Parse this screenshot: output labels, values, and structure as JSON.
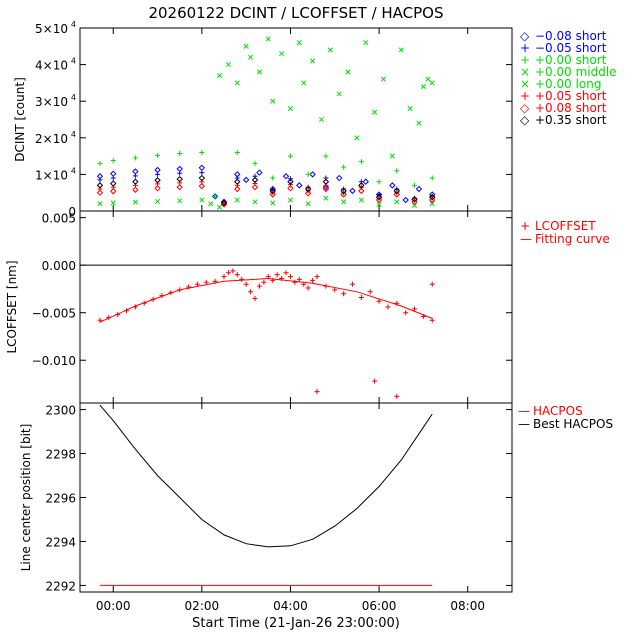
{
  "title": "20260122 DCINT / LCOFFSET / HACPOS",
  "x_axis": {
    "label": "Start Time (21-Jan-26 23:00:00)",
    "ticks": [
      "00:00",
      "02:00",
      "04:00",
      "06:00",
      "08:00"
    ],
    "tick_hours": [
      1,
      3,
      5,
      7,
      9
    ],
    "range_hours": [
      0.25,
      10.0
    ]
  },
  "colors": {
    "blue": "#0000ff",
    "green": "#00e000",
    "red": "#ff0000",
    "black": "#000000"
  },
  "chart_data": [
    {
      "type": "scatter",
      "name": "DCINT",
      "ylabel": "DCINT [count]",
      "ylim": [
        0,
        50000
      ],
      "yticks": [
        {
          "value": 0,
          "base": "0",
          "exp": ""
        },
        {
          "value": 10000,
          "base": "1×10",
          "exp": "4"
        },
        {
          "value": 20000,
          "base": "2×10",
          "exp": "4"
        },
        {
          "value": 30000,
          "base": "3×10",
          "exp": "4"
        },
        {
          "value": 40000,
          "base": "4×10",
          "exp": "4"
        },
        {
          "value": 50000,
          "base": "5×10",
          "exp": "4"
        }
      ],
      "legend": [
        {
          "symbol": "◇",
          "label": "−0.08 short",
          "color": "#0000ff"
        },
        {
          "symbol": "+",
          "label": "−0.05 short",
          "color": "#0000ff"
        },
        {
          "symbol": "+",
          "label": "+0.00 short",
          "color": "#00e000"
        },
        {
          "symbol": "×",
          "label": "+0.00 middle",
          "color": "#00e000"
        },
        {
          "symbol": "×",
          "label": "+0.00 long",
          "color": "#00e000"
        },
        {
          "symbol": "+",
          "label": "+0.05 short",
          "color": "#ff0000"
        },
        {
          "symbol": "◇",
          "label": "+0.08 short",
          "color": "#ff0000"
        },
        {
          "symbol": "◇",
          "label": "+0.35 short",
          "color": "#000000"
        }
      ],
      "series": [
        {
          "name": "-0.08 short",
          "marker": "diamond",
          "color": "#0000ff",
          "x": [
            0.7,
            1.0,
            1.5,
            2.0,
            2.5,
            3.0,
            3.3,
            3.5,
            3.8,
            4.0,
            4.3,
            4.6,
            4.9,
            5.2,
            5.5,
            5.8,
            6.1,
            6.4,
            6.7,
            7.0,
            7.3,
            7.6,
            7.9,
            8.2
          ],
          "y": [
            9500,
            10200,
            10800,
            11200,
            11500,
            11800,
            4000,
            2500,
            10000,
            8500,
            10500,
            6000,
            9500,
            7000,
            10000,
            6500,
            9000,
            5500,
            8000,
            4500,
            7000,
            3000,
            6000,
            4500
          ]
        },
        {
          "name": "-0.05 short",
          "marker": "plus",
          "color": "#0000ff",
          "x": [
            0.7,
            1.0,
            1.5,
            2.0,
            2.5,
            3.0,
            3.5,
            3.8,
            4.2,
            4.6,
            5.0,
            5.4,
            5.8,
            6.2,
            6.6,
            7.0,
            7.4,
            7.8,
            8.2
          ],
          "y": [
            8500,
            9000,
            9600,
            10000,
            10300,
            10500,
            2500,
            9000,
            9500,
            5800,
            8800,
            6500,
            9000,
            6000,
            8000,
            4500,
            6000,
            3500,
            4000
          ]
        },
        {
          "name": "+0.00 short",
          "marker": "plus",
          "color": "#00e000",
          "x": [
            0.7,
            1.0,
            1.5,
            2.0,
            2.5,
            3.0,
            3.3,
            3.5,
            3.8,
            4.2,
            4.6,
            5.0,
            5.4,
            5.8,
            6.2,
            6.6,
            7.0,
            7.4,
            7.8,
            8.2
          ],
          "y": [
            13000,
            13800,
            14500,
            15200,
            15700,
            16000,
            4000,
            2000,
            16000,
            13000,
            9000,
            15000,
            10000,
            15000,
            12000,
            13500,
            8000,
            11000,
            7000,
            9000
          ]
        },
        {
          "name": "+0.00 middle",
          "marker": "cross",
          "color": "#00e000",
          "x": [
            3.4,
            3.6,
            3.8,
            4.0,
            4.1,
            4.3,
            4.5,
            4.6,
            4.8,
            5.0,
            5.2,
            5.3,
            5.5,
            5.7,
            5.9,
            6.1,
            6.3,
            6.5,
            6.7,
            6.9,
            7.1,
            7.3,
            7.5,
            7.7,
            7.9,
            8.0,
            8.1,
            8.2
          ],
          "y": [
            37000,
            40000,
            35000,
            45000,
            42000,
            38000,
            47000,
            30000,
            43000,
            28000,
            46000,
            35000,
            41000,
            25000,
            44000,
            32000,
            38000,
            20000,
            46000,
            27000,
            36000,
            15000,
            44000,
            28000,
            24000,
            34000,
            36000,
            35000
          ]
        },
        {
          "name": "+0.00 long",
          "marker": "cross",
          "color": "#00e000",
          "x": [
            0.7,
            1.0,
            1.5,
            2.0,
            2.5,
            3.0,
            3.2,
            3.4,
            3.8,
            4.2,
            4.6,
            5.0,
            5.4,
            5.8,
            6.2,
            6.6,
            7.0,
            7.4,
            7.8,
            8.2
          ],
          "y": [
            2000,
            2200,
            2400,
            2600,
            2800,
            3000,
            2000,
            1000,
            3000,
            2500,
            2200,
            3000,
            2000,
            3500,
            2500,
            3000,
            1800,
            2500,
            1500,
            2000
          ]
        },
        {
          "name": "+0.05 short",
          "marker": "plus",
          "color": "#ff0000",
          "x": [
            0.7,
            1.0,
            1.5,
            2.0,
            2.5,
            3.0,
            3.5,
            3.8,
            4.2,
            4.6,
            5.0,
            5.4,
            5.8,
            6.2,
            6.6,
            7.0,
            7.4,
            7.8,
            8.2
          ],
          "y": [
            6000,
            6500,
            7000,
            7400,
            7700,
            8000,
            2000,
            7000,
            7500,
            5000,
            7200,
            5500,
            7000,
            5000,
            6500,
            3500,
            5000,
            3000,
            3500
          ]
        },
        {
          "name": "+0.08 short",
          "marker": "diamond",
          "color": "#ff0000",
          "x": [
            0.7,
            1.0,
            1.5,
            2.0,
            2.5,
            3.0,
            3.5,
            3.8,
            4.2,
            4.6,
            5.0,
            5.4,
            5.8,
            6.2,
            6.6,
            7.0,
            7.4,
            7.8,
            8.2
          ],
          "y": [
            5000,
            5400,
            5800,
            6200,
            6500,
            6800,
            1800,
            6000,
            6500,
            4500,
            6200,
            4800,
            6000,
            4500,
            5500,
            3000,
            4500,
            2500,
            3000
          ]
        },
        {
          "name": "+0.35 short",
          "marker": "diamond",
          "color": "#000000",
          "x": [
            0.7,
            1.0,
            1.5,
            2.0,
            2.5,
            3.0,
            3.5,
            3.8,
            4.2,
            4.6,
            5.0,
            5.4,
            5.8,
            6.2,
            6.6,
            7.0,
            7.4,
            7.8,
            8.2
          ],
          "y": [
            7000,
            7500,
            8000,
            8400,
            8700,
            9000,
            2200,
            8000,
            8500,
            5500,
            8000,
            6000,
            8000,
            5500,
            7000,
            3800,
            5500,
            3200,
            3800
          ]
        }
      ]
    },
    {
      "type": "scatter",
      "name": "LCOFFSET",
      "ylabel": "LCOFFSET [nm]",
      "ylim": [
        -0.0145,
        0.0057
      ],
      "yticks": [
        {
          "value": 0.005,
          "label": "0.005"
        },
        {
          "value": 0.0,
          "label": "0.000"
        },
        {
          "value": -0.005,
          "label": "−0.005"
        },
        {
          "value": -0.01,
          "label": "−0.010"
        }
      ],
      "zero_line": 0.0,
      "legend": [
        {
          "symbol": "+",
          "label": "LCOFFSET",
          "color": "#ff0000"
        },
        {
          "symbol": "—",
          "label": "Fitting curve",
          "color": "#ff0000"
        }
      ],
      "series": [
        {
          "name": "LCOFFSET",
          "marker": "plus",
          "color": "#ff0000",
          "x": [
            0.7,
            0.9,
            1.1,
            1.3,
            1.5,
            1.7,
            1.9,
            2.1,
            2.3,
            2.5,
            2.7,
            2.9,
            3.1,
            3.3,
            3.5,
            3.6,
            3.7,
            3.8,
            3.9,
            4.0,
            4.1,
            4.2,
            4.3,
            4.4,
            4.5,
            4.6,
            4.7,
            4.8,
            4.9,
            5.0,
            5.1,
            5.2,
            5.3,
            5.4,
            5.5,
            5.6,
            5.8,
            6.0,
            6.2,
            6.4,
            6.6,
            6.8,
            7.0,
            7.2,
            7.4,
            7.6,
            7.8,
            8.0,
            8.2,
            5.6,
            6.9,
            7.4,
            8.2
          ],
          "y": [
            -0.0058,
            -0.0055,
            -0.0052,
            -0.0048,
            -0.0044,
            -0.004,
            -0.0036,
            -0.0032,
            -0.0029,
            -0.0026,
            -0.0023,
            -0.002,
            -0.0018,
            -0.0017,
            -0.0012,
            -0.0008,
            -0.0006,
            -0.001,
            -0.0015,
            -0.002,
            -0.0028,
            -0.0035,
            -0.0022,
            -0.0018,
            -0.0012,
            -0.0016,
            -0.001,
            -0.0014,
            -0.0008,
            -0.0012,
            -0.0018,
            -0.0015,
            -0.002,
            -0.0024,
            -0.0016,
            -0.0012,
            -0.0022,
            -0.0026,
            -0.003,
            -0.002,
            -0.0034,
            -0.0028,
            -0.0038,
            -0.0044,
            -0.004,
            -0.005,
            -0.0046,
            -0.0054,
            -0.0058,
            -0.0133,
            -0.0122,
            -0.0138,
            -0.002
          ]
        },
        {
          "name": "Fitting curve",
          "marker": "line",
          "color": "#ff0000",
          "x": [
            0.7,
            1.5,
            2.5,
            3.5,
            4.5,
            5.5,
            6.5,
            7.5,
            8.2
          ],
          "y": [
            -0.006,
            -0.0043,
            -0.0026,
            -0.0017,
            -0.0014,
            -0.0019,
            -0.0028,
            -0.0043,
            -0.0056
          ]
        }
      ]
    },
    {
      "type": "line",
      "name": "HACPOS",
      "ylabel": "Line center position [bit]",
      "ylim": [
        2291.7,
        2300.3
      ],
      "yticks": [
        {
          "value": 2292,
          "label": "2292"
        },
        {
          "value": 2294,
          "label": "2294"
        },
        {
          "value": 2296,
          "label": "2296"
        },
        {
          "value": 2298,
          "label": "2298"
        },
        {
          "value": 2300,
          "label": "2300"
        }
      ],
      "legend": [
        {
          "symbol": "—",
          "label": "HACPOS",
          "color": "#ff0000"
        },
        {
          "symbol": "—",
          "label": "Best HACPOS",
          "color": "#000000"
        }
      ],
      "series": [
        {
          "name": "HACPOS",
          "color": "#ff0000",
          "x": [
            0.7,
            8.2
          ],
          "y": [
            2292.0,
            2292.0
          ]
        },
        {
          "name": "Best HACPOS",
          "color": "#000000",
          "x": [
            0.7,
            1.0,
            1.5,
            2.0,
            2.5,
            3.0,
            3.5,
            4.0,
            4.5,
            5.0,
            5.5,
            6.0,
            6.5,
            7.0,
            7.5,
            8.0,
            8.2
          ],
          "y": [
            2300.2,
            2299.5,
            2298.2,
            2297.0,
            2296.0,
            2295.0,
            2294.3,
            2293.9,
            2293.75,
            2293.8,
            2294.1,
            2294.7,
            2295.5,
            2296.5,
            2297.7,
            2299.2,
            2299.8
          ]
        }
      ]
    }
  ]
}
